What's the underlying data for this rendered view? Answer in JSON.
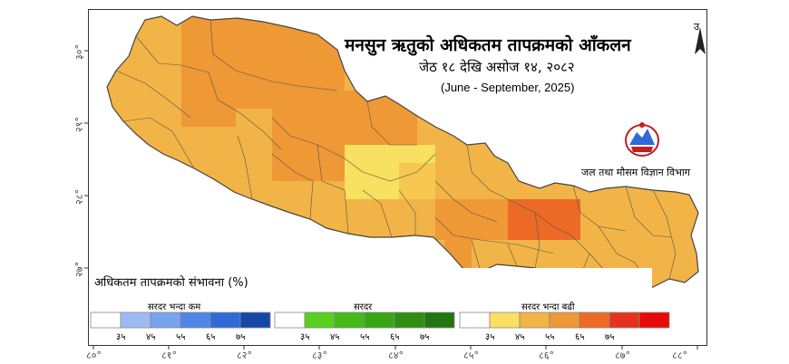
{
  "title": "मनसुन ऋतुको अधिकतम तापक्रमको आँकलन",
  "subtitle": "जेठ १८ देखि असोज १४, २०८२",
  "subtitle_en": "(June - September, 2025)",
  "department": "जल तथा मौसम विज्ञान विभाग",
  "north_label": "उ",
  "legend": {
    "title": "अधिकतम तापक्रमको संभावना (%)",
    "groups": [
      {
        "label": "सरदर भन्दा कम",
        "colors": [
          "#ffffff",
          "#9fbcf2",
          "#79a3ee",
          "#4f86e8",
          "#2f6ad8",
          "#1746a8"
        ],
        "ticks": [
          "३५",
          "४५",
          "५५",
          "६५",
          "७५"
        ]
      },
      {
        "label": "सरदर",
        "colors": [
          "#ffffff",
          "#57d11f",
          "#45bb18",
          "#39a715",
          "#2e8f12",
          "#237510"
        ],
        "ticks": [
          "३५",
          "४५",
          "५५",
          "६५",
          "७५"
        ]
      },
      {
        "label": "सरदर भन्दा बढी",
        "colors": [
          "#ffffff",
          "#f8e060",
          "#f2b446",
          "#ef9836",
          "#ec6a26",
          "#e5331a",
          "#e80909"
        ],
        "ticks": [
          "३५",
          "४५",
          "५५",
          "६५",
          "७५"
        ]
      }
    ]
  },
  "longitudes": [
    "८०°",
    "८१°",
    "८२°",
    "८३°",
    "८४°",
    "८५°",
    "८६°",
    "८७°",
    "८८°"
  ],
  "latitudes": [
    "३०°",
    "२९°",
    "२८°",
    "२७°"
  ],
  "colors": {
    "above_45": "#f2b446",
    "above_55": "#ef9836",
    "above_65": "#ec6a26",
    "above_35": "#f8e060",
    "boundary": "#555555"
  }
}
